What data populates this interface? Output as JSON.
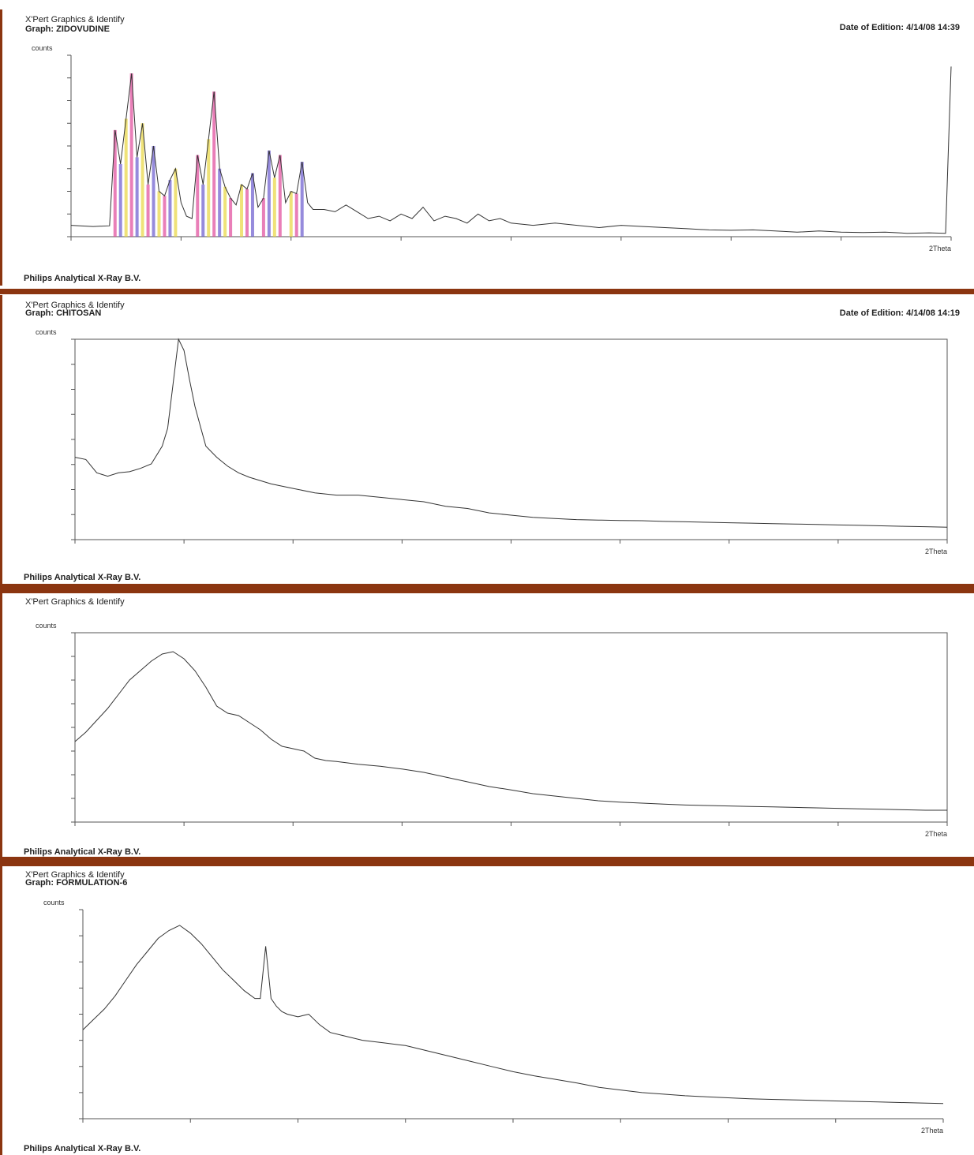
{
  "panels": [
    {
      "app_title": "X'Pert Graphics & Identify",
      "graph_label": "Graph: ZIDOVUDINE",
      "date_label": "Date of Edition: 4/14/08 14:39",
      "ylabel": "counts",
      "xunit": "2Theta",
      "footer": "Philips Analytical X-Ray B.V."
    },
    {
      "app_title": "X'Pert Graphics & Identify",
      "graph_label": "Graph: CHITOSAN",
      "date_label": "Date of Edition: 4/14/08 14:19",
      "ylabel": "counts",
      "xunit": "2Theta",
      "footer": "Philips Analytical X-Ray B.V."
    },
    {
      "app_title": "X'Pert Graphics & Identify",
      "graph_label": "",
      "date_label": "",
      "ylabel": "counts",
      "xunit": "2Theta",
      "footer": "Philips Analytical X-Ray B.V."
    },
    {
      "app_title": "X'Pert Graphics & Identify",
      "graph_label": "Graph: FORMULATION-6",
      "date_label": "",
      "ylabel": "counts",
      "xunit": "2Theta",
      "footer": "Philips Analytical X-Ray B.V."
    }
  ],
  "colors": {
    "separator": "#8b3510",
    "trace": "#333333",
    "peak_pink": "#e0489a",
    "peak_purple": "#6a5acd",
    "peak_yellow": "#e8d640"
  },
  "chart_data": [
    {
      "type": "line",
      "title": "Graph: ZIDOVUDINE",
      "xlabel": "2Theta",
      "ylabel": "counts",
      "xlim": [
        10,
        90
      ],
      "ylim": [
        0,
        8000
      ],
      "xticks": [],
      "yticks": [],
      "grid": false,
      "series": [
        {
          "x": [
            10,
            12,
            13.5,
            14,
            14.5,
            15,
            15.5,
            16,
            16.5,
            17,
            17.5,
            18,
            18.5,
            19,
            19.5,
            20,
            20.5,
            21,
            21.5,
            22,
            22.5,
            23,
            23.5,
            24,
            24.5,
            25,
            25.5,
            26,
            26.5,
            27,
            27.5,
            28,
            28.5,
            29,
            29.5,
            30,
            30.5,
            31,
            31.5,
            32,
            33,
            34,
            35,
            36,
            37,
            38,
            39,
            40,
            41,
            42,
            43,
            44,
            45,
            46,
            47,
            48,
            49,
            50,
            52,
            54,
            56,
            58,
            60,
            62,
            64,
            66,
            68,
            70,
            72,
            74,
            76,
            78,
            80,
            82,
            84,
            86,
            88,
            89.5,
            90
          ],
          "y": [
            500,
            450,
            480,
            4700,
            3200,
            5200,
            7200,
            3500,
            5000,
            2300,
            4000,
            2000,
            1800,
            2500,
            3000,
            1500,
            900,
            800,
            3600,
            2300,
            4300,
            6400,
            3000,
            2200,
            1700,
            1400,
            2300,
            2100,
            2800,
            1300,
            1700,
            3800,
            2600,
            3600,
            1500,
            2000,
            1900,
            3300,
            1500,
            1200,
            1200,
            1100,
            1400,
            1100,
            800,
            900,
            700,
            1000,
            800,
            1300,
            700,
            900,
            800,
            600,
            1000,
            700,
            800,
            600,
            500,
            600,
            500,
            400,
            500,
            450,
            400,
            350,
            300,
            280,
            300,
            250,
            200,
            250,
            200,
            180,
            200,
            150,
            170,
            150,
            7500
          ]
        }
      ]
    },
    {
      "type": "line",
      "title": "Graph: CHITOSAN",
      "xlabel": "2Theta",
      "ylabel": "counts",
      "xlim": [
        10,
        90
      ],
      "ylim": [
        0,
        900
      ],
      "xticks": [],
      "yticks": [],
      "grid": false,
      "series": [
        {
          "x": [
            10,
            11,
            12,
            13,
            14,
            15,
            16,
            17,
            18,
            18.5,
            19,
            19.5,
            20,
            20.5,
            21,
            21.5,
            22,
            23,
            24,
            25,
            26,
            28,
            30,
            32,
            34,
            36,
            38,
            40,
            42,
            44,
            46,
            48,
            50,
            52,
            54,
            56,
            58,
            60,
            62,
            64,
            66,
            68,
            70,
            72,
            74,
            76,
            78,
            80,
            82,
            84,
            86,
            88,
            90
          ],
          "y": [
            370,
            360,
            300,
            285,
            300,
            305,
            320,
            340,
            420,
            500,
            700,
            900,
            850,
            720,
            600,
            510,
            420,
            370,
            330,
            300,
            280,
            250,
            230,
            210,
            200,
            200,
            190,
            180,
            170,
            150,
            140,
            120,
            110,
            100,
            95,
            90,
            88,
            86,
            85,
            82,
            80,
            78,
            76,
            74,
            72,
            70,
            68,
            66,
            64,
            62,
            60,
            58,
            56
          ]
        }
      ]
    },
    {
      "type": "line",
      "title": "",
      "xlabel": "2Theta",
      "ylabel": "counts",
      "xlim": [
        10,
        90
      ],
      "ylim": [
        0,
        400
      ],
      "xticks": [],
      "yticks": [],
      "grid": false,
      "series": [
        {
          "x": [
            10,
            11,
            12,
            13,
            14,
            15,
            16,
            17,
            18,
            19,
            20,
            21,
            22,
            23,
            24,
            25,
            26,
            27,
            28,
            29,
            30,
            31,
            32,
            33,
            34,
            35,
            36,
            38,
            40,
            42,
            44,
            46,
            48,
            50,
            52,
            54,
            56,
            58,
            60,
            62,
            64,
            66,
            68,
            70,
            72,
            74,
            76,
            78,
            80,
            82,
            84,
            86,
            88,
            90
          ],
          "y": [
            170,
            190,
            215,
            240,
            270,
            300,
            320,
            340,
            355,
            360,
            345,
            320,
            285,
            245,
            230,
            225,
            210,
            195,
            175,
            160,
            155,
            150,
            135,
            130,
            128,
            125,
            122,
            118,
            112,
            105,
            95,
            85,
            75,
            68,
            60,
            55,
            50,
            45,
            42,
            40,
            38,
            36,
            35,
            34,
            33,
            32,
            31,
            30,
            29,
            28,
            27,
            26,
            25,
            25
          ]
        }
      ]
    },
    {
      "type": "line",
      "title": "Graph: FORMULATION-6",
      "xlabel": "2Theta",
      "ylabel": "counts",
      "xlim": [
        10,
        90
      ],
      "ylim": [
        0,
        400
      ],
      "xticks": [],
      "yticks": [],
      "grid": false,
      "series": [
        {
          "x": [
            10,
            11,
            12,
            13,
            14,
            15,
            16,
            17,
            18,
            19,
            20,
            21,
            22,
            23,
            24,
            25,
            26,
            26.5,
            27,
            27.5,
            28,
            28.5,
            29,
            30,
            31,
            32,
            33,
            34,
            36,
            38,
            40,
            42,
            44,
            46,
            48,
            50,
            52,
            54,
            56,
            58,
            60,
            62,
            64,
            66,
            68,
            70,
            72,
            74,
            76,
            78,
            80,
            82,
            84,
            86,
            88,
            90
          ],
          "y": [
            170,
            190,
            210,
            235,
            265,
            295,
            320,
            345,
            360,
            370,
            355,
            335,
            310,
            285,
            265,
            245,
            230,
            230,
            330,
            230,
            215,
            205,
            200,
            195,
            200,
            180,
            165,
            160,
            150,
            145,
            140,
            130,
            120,
            110,
            100,
            90,
            82,
            75,
            68,
            60,
            55,
            50,
            47,
            44,
            42,
            40,
            38,
            37,
            36,
            35,
            34,
            33,
            32,
            31,
            30,
            29
          ]
        }
      ]
    }
  ]
}
